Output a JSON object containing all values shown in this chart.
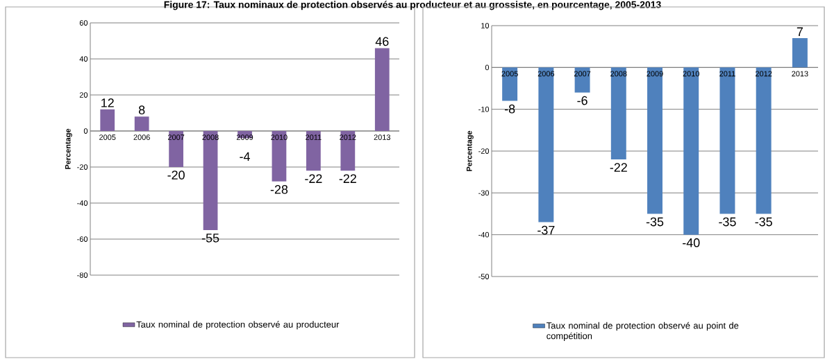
{
  "chart_data": [
    {
      "type": "bar",
      "title": "Figure 17: Taux nominaux de protection observés au producteur et au grossiste, en pourcentage, 2005-2013",
      "ylabel": "Percentage",
      "categories": [
        "2005",
        "2006",
        "2007",
        "2008",
        "2009",
        "2010",
        "2011",
        "2012",
        "2013"
      ],
      "series": [
        {
          "name": "Taux nominal de protection observé au producteur",
          "color": "#8064a2",
          "values": [
            12,
            8,
            -20,
            -55,
            -4,
            -28,
            -22,
            -22,
            46
          ]
        }
      ],
      "ylim": [
        -80,
        60
      ],
      "yticks": [
        -80,
        -60,
        -40,
        -20,
        0,
        20,
        40,
        60
      ],
      "grid": "y",
      "legend": "bottom",
      "data_labels": true
    },
    {
      "type": "bar",
      "ylabel": "Percentage",
      "categories": [
        "2005",
        "2006",
        "2007",
        "2008",
        "2009",
        "2010",
        "2011",
        "2012",
        "2013"
      ],
      "series": [
        {
          "name": "Taux nominal de protection observé au point de compétition",
          "color": "#4f81bd",
          "values": [
            -8,
            -37,
            -6,
            -22,
            -35,
            -40,
            -35,
            -35,
            7
          ]
        }
      ],
      "ylim": [
        -50,
        10
      ],
      "yticks": [
        -50,
        -40,
        -30,
        -20,
        -10,
        0,
        10
      ],
      "grid": "y",
      "legend": "bottom",
      "data_labels": true
    }
  ]
}
